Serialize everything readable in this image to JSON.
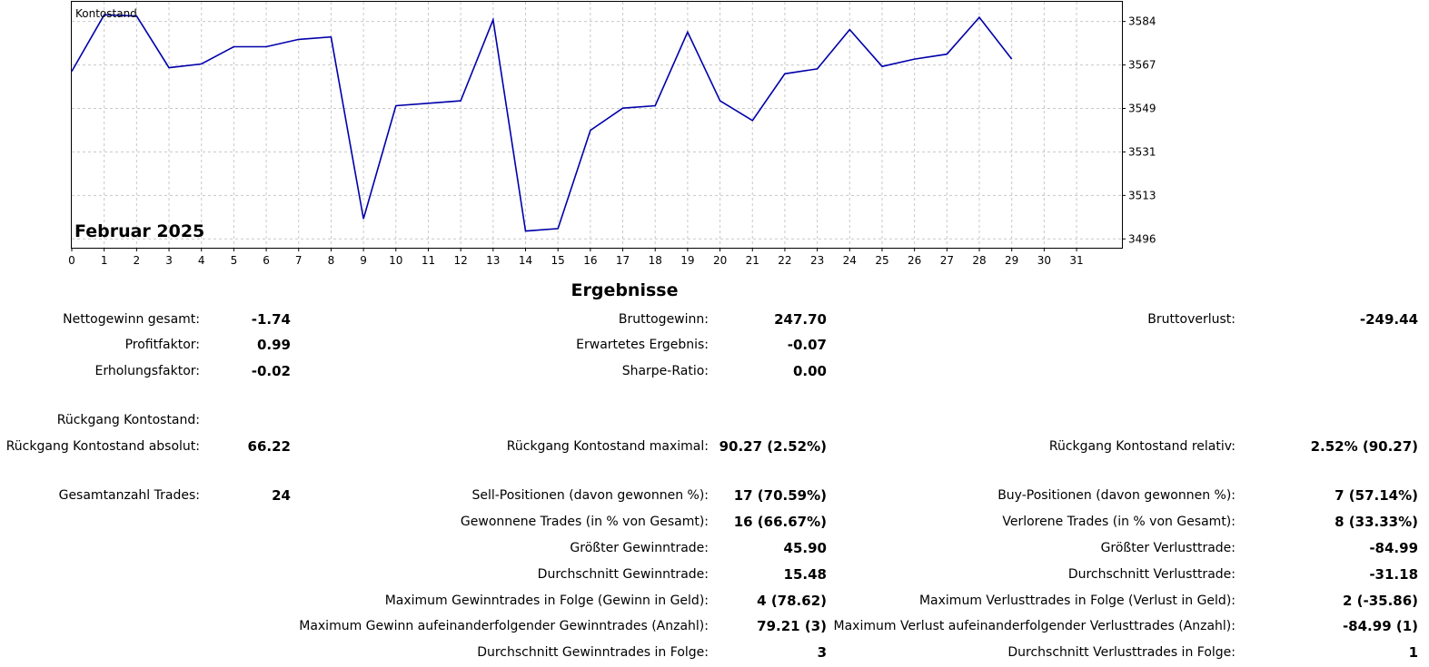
{
  "chart_data": {
    "type": "line",
    "title": "Kontostand",
    "period_label": "Februar 2025",
    "x": [
      0,
      1,
      2,
      3,
      4,
      5,
      6,
      7,
      8,
      9,
      10,
      11,
      12,
      13,
      14,
      15,
      16,
      17,
      18,
      19,
      20,
      21,
      22,
      23,
      24,
      25,
      26,
      27,
      28,
      29
    ],
    "series": [
      {
        "values": [
          3564,
          3587,
          3586.5,
          3565.5,
          3567,
          3574,
          3574,
          3577,
          3578,
          3504,
          3550,
          3551,
          3552,
          3585,
          3499,
          3500,
          3540,
          3549,
          3550,
          3580,
          3552,
          3544,
          3563,
          3565,
          3581,
          3566,
          3569,
          3571,
          3586,
          3569
        ]
      }
    ],
    "x_ticks": [
      "0",
      "1",
      "2",
      "3",
      "4",
      "5",
      "6",
      "7",
      "8",
      "9",
      "10",
      "11",
      "12",
      "13",
      "14",
      "15",
      "16",
      "17",
      "18",
      "19",
      "20",
      "21",
      "22",
      "23",
      "24",
      "25",
      "26",
      "27",
      "28",
      "29",
      "30",
      "31"
    ],
    "y_ticks": [
      "3584",
      "3567",
      "3549",
      "3531",
      "3513",
      "3496"
    ],
    "y_tick_values": [
      3584.3,
      3566.6,
      3548.9,
      3531.2,
      3513.5,
      3495.8
    ],
    "ylim": [
      3492.2,
      3592.3
    ],
    "xlim": [
      0,
      32.4
    ],
    "grid": true,
    "colors": {
      "line": "#0000aa",
      "grid": "#c8c8c8",
      "frame": "#000000"
    }
  },
  "results": {
    "heading": "Ergebnisse",
    "net_profit": {
      "label": "Nettogewinn gesamt:",
      "value": "-1.74"
    },
    "gross_profit": {
      "label": "Bruttogewinn:",
      "value": "247.70"
    },
    "gross_loss": {
      "label": "Bruttoverlust:",
      "value": "-249.44"
    },
    "profit_factor": {
      "label": "Profitfaktor:",
      "value": "0.99"
    },
    "expected_payoff": {
      "label": "Erwartetes Ergebnis:",
      "value": "-0.07"
    },
    "recovery_factor": {
      "label": "Erholungsfaktor:",
      "value": "-0.02"
    },
    "sharpe_ratio": {
      "label": "Sharpe-Ratio:",
      "value": "0.00"
    },
    "drawdown_heading": "Rückgang Kontostand:",
    "dd_absolute": {
      "label": "Rückgang Kontostand absolut:",
      "value": "66.22"
    },
    "dd_maximal": {
      "label": "Rückgang Kontostand maximal:",
      "value": "90.27 (2.52%)"
    },
    "dd_relative": {
      "label": "Rückgang Kontostand relativ:",
      "value": "2.52% (90.27)"
    },
    "total_trades": {
      "label": "Gesamtanzahl Trades:",
      "value": "24"
    },
    "sell_positions": {
      "label": "Sell-Positionen (davon gewonnen %):",
      "value": "17 (70.59%)"
    },
    "buy_positions": {
      "label": "Buy-Positionen (davon gewonnen %):",
      "value": "7 (57.14%)"
    },
    "won_trades": {
      "label": "Gewonnene Trades (in % von Gesamt):",
      "value": "16 (66.67%)"
    },
    "lost_trades": {
      "label": "Verlorene Trades (in % von Gesamt):",
      "value": "8 (33.33%)"
    },
    "largest_win": {
      "label": "Größter Gewinntrade:",
      "value": "45.90"
    },
    "largest_loss": {
      "label": "Größter Verlusttrade:",
      "value": "-84.99"
    },
    "avg_win": {
      "label": "Durchschnitt Gewinntrade:",
      "value": "15.48"
    },
    "avg_loss": {
      "label": "Durchschnitt Verlusttrade:",
      "value": "-31.18"
    },
    "max_consec_wins": {
      "label": "Maximum Gewinntrades in Folge (Gewinn in Geld):",
      "value": "4 (78.62)"
    },
    "max_consec_losses": {
      "label": "Maximum Verlusttrades in Folge (Verlust in Geld):",
      "value": "2 (-35.86)"
    },
    "max_consec_profit": {
      "label": "Maximum Gewinn aufeinanderfolgender Gewinntrades (Anzahl):",
      "value": "79.21 (3)"
    },
    "max_consec_loss": {
      "label": "Maximum Verlust aufeinanderfolgender Verlusttrades (Anzahl):",
      "value": "-84.99 (1)"
    },
    "avg_consec_wins": {
      "label": "Durchschnitt Gewinntrades in Folge:",
      "value": "3"
    },
    "avg_consec_losses": {
      "label": "Durchschnitt Verlusttrades in Folge:",
      "value": "1"
    }
  }
}
